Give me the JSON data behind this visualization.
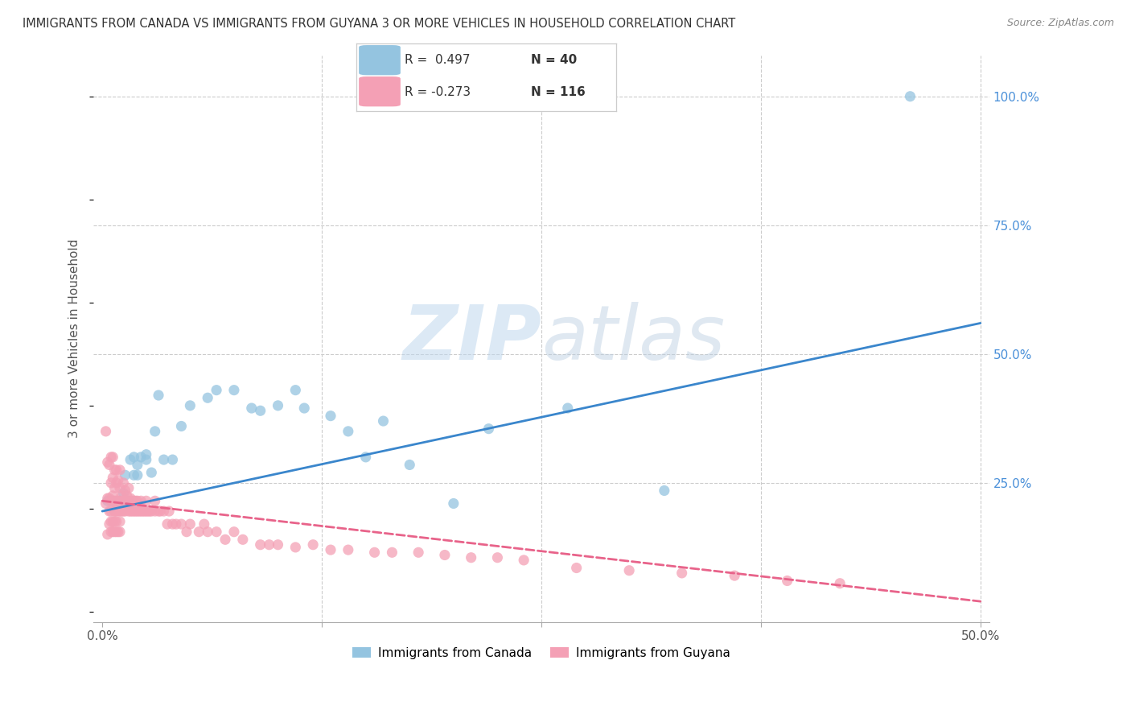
{
  "title": "IMMIGRANTS FROM CANADA VS IMMIGRANTS FROM GUYANA 3 OR MORE VEHICLES IN HOUSEHOLD CORRELATION CHART",
  "source": "Source: ZipAtlas.com",
  "xlabel": "",
  "ylabel": "3 or more Vehicles in Household",
  "xlim": [
    -0.005,
    0.505
  ],
  "ylim": [
    -0.02,
    1.08
  ],
  "xticks": [
    0.0,
    0.125,
    0.25,
    0.375,
    0.5
  ],
  "xticklabels": [
    "0.0%",
    "",
    "",
    "",
    "50.0%"
  ],
  "yticks_right": [
    0.0,
    0.25,
    0.5,
    0.75,
    1.0
  ],
  "yticklabels_right": [
    "",
    "25.0%",
    "50.0%",
    "75.0%",
    "100.0%"
  ],
  "legend_canada_r": "R =  0.497",
  "legend_canada_n": "N = 40",
  "legend_guyana_r": "R = -0.273",
  "legend_guyana_n": "N = 116",
  "canada_color": "#94c4e0",
  "guyana_color": "#f4a0b5",
  "canada_line_color": "#3a86cc",
  "guyana_line_color": "#e8638a",
  "watermark_zip": "ZIP",
  "watermark_atlas": "atlas",
  "canada_scatter_x": [
    0.003,
    0.005,
    0.008,
    0.01,
    0.012,
    0.013,
    0.015,
    0.016,
    0.018,
    0.018,
    0.02,
    0.02,
    0.022,
    0.025,
    0.025,
    0.028,
    0.03,
    0.032,
    0.035,
    0.04,
    0.045,
    0.05,
    0.06,
    0.065,
    0.075,
    0.085,
    0.09,
    0.1,
    0.11,
    0.115,
    0.13,
    0.14,
    0.15,
    0.16,
    0.175,
    0.2,
    0.22,
    0.265,
    0.32,
    0.46
  ],
  "canada_scatter_y": [
    0.215,
    0.215,
    0.21,
    0.215,
    0.23,
    0.265,
    0.215,
    0.295,
    0.265,
    0.3,
    0.265,
    0.285,
    0.3,
    0.295,
    0.305,
    0.27,
    0.35,
    0.42,
    0.295,
    0.295,
    0.36,
    0.4,
    0.415,
    0.43,
    0.43,
    0.395,
    0.39,
    0.4,
    0.43,
    0.395,
    0.38,
    0.35,
    0.3,
    0.37,
    0.285,
    0.21,
    0.355,
    0.395,
    0.235,
    1.0
  ],
  "guyana_scatter_x": [
    0.002,
    0.002,
    0.003,
    0.003,
    0.004,
    0.004,
    0.005,
    0.005,
    0.005,
    0.006,
    0.006,
    0.006,
    0.006,
    0.007,
    0.007,
    0.007,
    0.007,
    0.008,
    0.008,
    0.008,
    0.008,
    0.009,
    0.009,
    0.009,
    0.01,
    0.01,
    0.01,
    0.01,
    0.011,
    0.011,
    0.012,
    0.012,
    0.012,
    0.013,
    0.013,
    0.013,
    0.014,
    0.014,
    0.015,
    0.015,
    0.015,
    0.016,
    0.016,
    0.017,
    0.017,
    0.018,
    0.018,
    0.019,
    0.019,
    0.02,
    0.02,
    0.021,
    0.022,
    0.022,
    0.023,
    0.024,
    0.025,
    0.025,
    0.026,
    0.027,
    0.028,
    0.03,
    0.03,
    0.032,
    0.033,
    0.035,
    0.037,
    0.038,
    0.04,
    0.042,
    0.045,
    0.048,
    0.05,
    0.055,
    0.058,
    0.06,
    0.065,
    0.07,
    0.075,
    0.08,
    0.09,
    0.095,
    0.1,
    0.11,
    0.12,
    0.13,
    0.14,
    0.155,
    0.165,
    0.18,
    0.195,
    0.21,
    0.225,
    0.24,
    0.27,
    0.3,
    0.33,
    0.36,
    0.39,
    0.42,
    0.003,
    0.004,
    0.004,
    0.005,
    0.005,
    0.005,
    0.006,
    0.006,
    0.007,
    0.007,
    0.007,
    0.008,
    0.008,
    0.009,
    0.01,
    0.01
  ],
  "guyana_scatter_y": [
    0.21,
    0.35,
    0.22,
    0.29,
    0.22,
    0.285,
    0.215,
    0.25,
    0.3,
    0.215,
    0.225,
    0.26,
    0.3,
    0.195,
    0.215,
    0.24,
    0.275,
    0.195,
    0.215,
    0.25,
    0.275,
    0.195,
    0.215,
    0.255,
    0.195,
    0.215,
    0.24,
    0.275,
    0.195,
    0.225,
    0.195,
    0.215,
    0.25,
    0.195,
    0.215,
    0.235,
    0.205,
    0.225,
    0.195,
    0.215,
    0.24,
    0.195,
    0.22,
    0.195,
    0.215,
    0.195,
    0.215,
    0.195,
    0.215,
    0.195,
    0.215,
    0.195,
    0.195,
    0.215,
    0.195,
    0.195,
    0.195,
    0.215,
    0.195,
    0.195,
    0.195,
    0.195,
    0.215,
    0.195,
    0.195,
    0.195,
    0.17,
    0.195,
    0.17,
    0.17,
    0.17,
    0.155,
    0.17,
    0.155,
    0.17,
    0.155,
    0.155,
    0.14,
    0.155,
    0.14,
    0.13,
    0.13,
    0.13,
    0.125,
    0.13,
    0.12,
    0.12,
    0.115,
    0.115,
    0.115,
    0.11,
    0.105,
    0.105,
    0.1,
    0.085,
    0.08,
    0.075,
    0.07,
    0.06,
    0.055,
    0.15,
    0.17,
    0.195,
    0.155,
    0.175,
    0.195,
    0.155,
    0.175,
    0.155,
    0.175,
    0.195,
    0.155,
    0.175,
    0.155,
    0.155,
    0.175
  ],
  "canada_line_x": [
    0.0,
    0.5
  ],
  "canada_line_y": [
    0.195,
    0.56
  ],
  "guyana_line_x": [
    0.0,
    0.5
  ],
  "guyana_line_y": [
    0.215,
    0.02
  ],
  "grid_color": "#cccccc",
  "background_color": "#ffffff",
  "title_color": "#333333",
  "axis_label_color": "#555555",
  "right_tick_color": "#4a90d9",
  "tick_label_color": "#555555"
}
